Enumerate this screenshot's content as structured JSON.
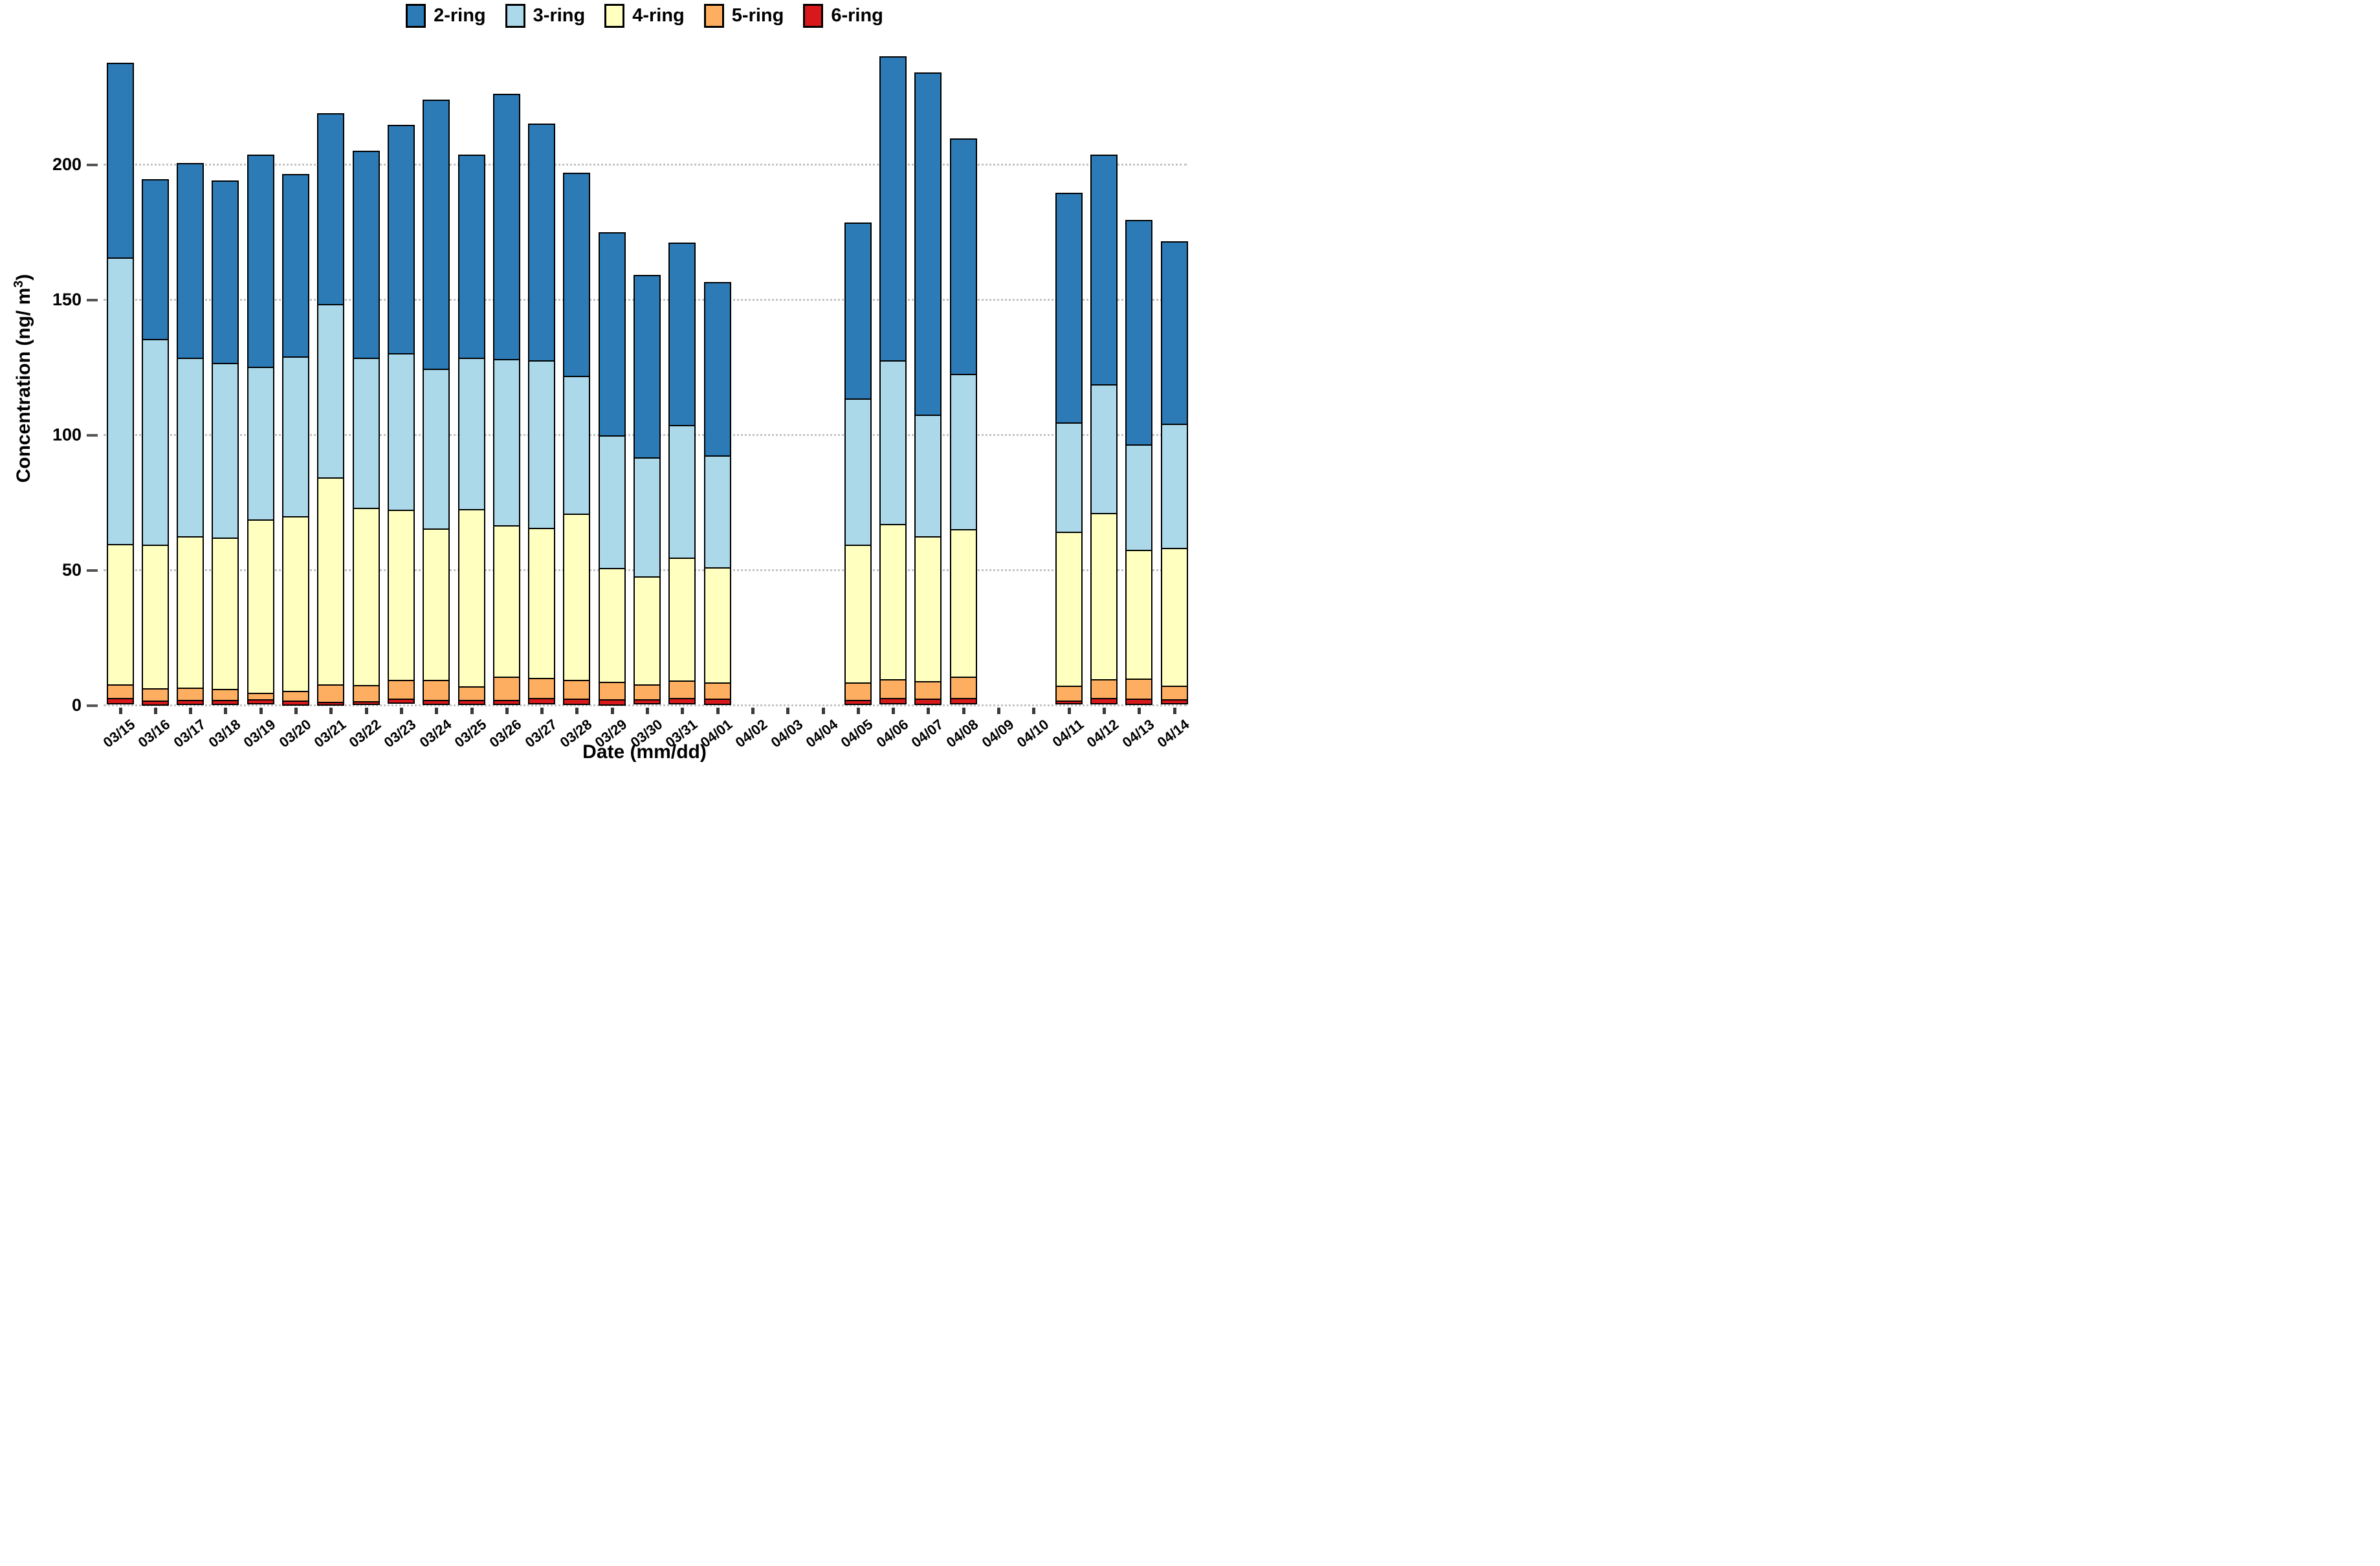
{
  "chart_data": {
    "type": "bar",
    "stacked": true,
    "title": "",
    "xlabel": "Date (mm/dd)",
    "ylabel_pre": "Concentration (ng/ m",
    "ylabel_sup": "3",
    "ylabel_post": ")",
    "ylim": [
      0,
      245
    ],
    "yticks": [
      0,
      50,
      100,
      150,
      200
    ],
    "grid": "horizontal-dotted",
    "legend_position": "top-center",
    "categories": [
      "03/15",
      "03/16",
      "03/17",
      "03/18",
      "03/19",
      "03/20",
      "03/21",
      "03/22",
      "03/23",
      "03/24",
      "03/25",
      "03/26",
      "03/27",
      "03/28",
      "03/29",
      "03/30",
      "03/31",
      "04/01",
      "04/02",
      "04/03",
      "04/04",
      "04/05",
      "04/06",
      "04/07",
      "04/08",
      "04/09",
      "04/10",
      "04/11",
      "04/12",
      "04/13",
      "04/14"
    ],
    "series": [
      {
        "name": "2-ring",
        "color": "#2C7BB6",
        "values": [
          72,
          59,
          72,
          67.5,
          78.5,
          67.5,
          70.5,
          76.5,
          84.5,
          99.5,
          75,
          98,
          87.5,
          75,
          75,
          67.5,
          67.5,
          64,
          null,
          null,
          null,
          65,
          112.5,
          126.5,
          87,
          null,
          null,
          85,
          85,
          83,
          67.5
        ]
      },
      {
        "name": "3-ring",
        "color": "#ABD9E9",
        "values": [
          106,
          76,
          66,
          64.5,
          56.5,
          59,
          64,
          55.5,
          58,
          59,
          56,
          61.5,
          62,
          51,
          49,
          44,
          49,
          41.5,
          null,
          null,
          null,
          54,
          60.5,
          45,
          57.5,
          null,
          null,
          40.5,
          47.5,
          39,
          46
        ]
      },
      {
        "name": "4-ring",
        "color": "#FFFFBF",
        "values": [
          52,
          53,
          56,
          56,
          64,
          64.5,
          76.5,
          65.5,
          63,
          56,
          65.5,
          56,
          55.5,
          61.5,
          42,
          40,
          45.5,
          42.5,
          null,
          null,
          null,
          51,
          57.5,
          53.5,
          54.5,
          null,
          null,
          57,
          61.5,
          47.5,
          51
        ]
      },
      {
        "name": "5-ring",
        "color": "#FDAE61",
        "values": [
          5,
          4.5,
          4.5,
          4,
          2.5,
          3.5,
          6.5,
          6,
          7,
          7.5,
          5,
          8.5,
          7.5,
          7,
          6.5,
          5.5,
          6.5,
          6,
          null,
          null,
          null,
          6.5,
          7,
          6.5,
          8,
          null,
          null,
          5.5,
          7,
          7.5,
          5
        ]
      },
      {
        "name": "6-ring",
        "color": "#D7191C",
        "values": [
          2,
          1.5,
          1.5,
          1.5,
          1.5,
          1.5,
          1,
          1,
          1.5,
          1.5,
          1.5,
          1.5,
          2,
          2,
          2,
          1.5,
          2,
          2,
          null,
          null,
          null,
          1.5,
          2,
          2,
          2,
          null,
          null,
          1,
          2,
          2,
          1.5
        ]
      }
    ]
  }
}
